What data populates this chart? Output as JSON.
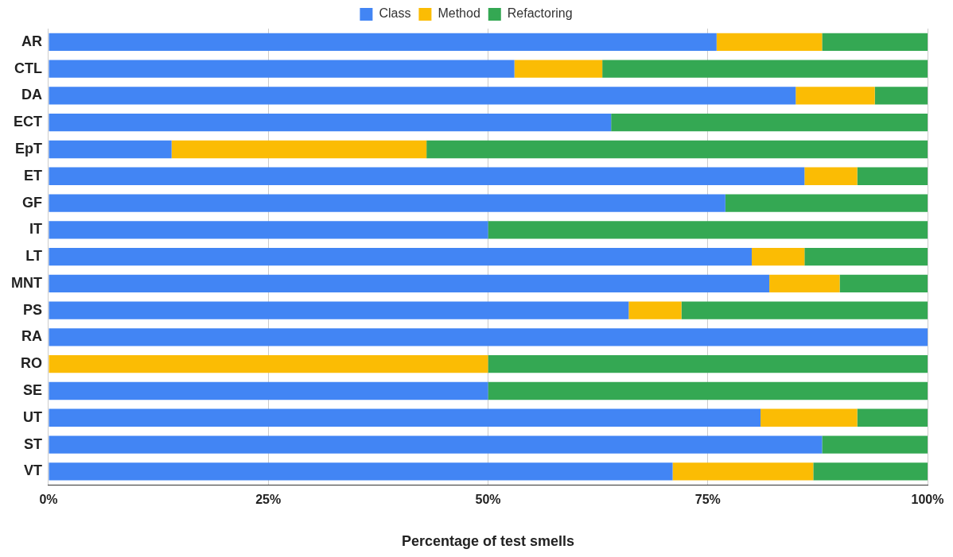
{
  "chart_data": {
    "type": "bar",
    "orientation": "horizontal",
    "stacked": true,
    "xlabel": "Percentage of test smells",
    "categories": [
      "AR",
      "CTL",
      "DA",
      "ECT",
      "EpT",
      "ET",
      "GF",
      "IT",
      "LT",
      "MNT",
      "PS",
      "RA",
      "RO",
      "SE",
      "UT",
      "ST",
      "VT"
    ],
    "series": [
      {
        "name": "Class",
        "color": "#4285f4",
        "values": [
          76,
          53,
          85,
          64,
          14,
          86,
          77,
          50,
          80,
          82,
          66,
          100,
          0,
          50,
          81,
          88,
          71
        ]
      },
      {
        "name": "Method",
        "color": "#fbbc04",
        "values": [
          12,
          10,
          9,
          0,
          29,
          6,
          0,
          0,
          6,
          8,
          6,
          0,
          50,
          0,
          11,
          0,
          16
        ]
      },
      {
        "name": "Refactoring",
        "color": "#34a853",
        "values": [
          12,
          37,
          6,
          36,
          57,
          8,
          23,
          50,
          14,
          10,
          28,
          0,
          50,
          50,
          8,
          12,
          13
        ]
      }
    ],
    "xlim": [
      0,
      100
    ],
    "xticks": [
      {
        "value": 0,
        "label": "0%"
      },
      {
        "value": 25,
        "label": "25%"
      },
      {
        "value": 50,
        "label": "50%"
      },
      {
        "value": 75,
        "label": "75%"
      },
      {
        "value": 100,
        "label": "100%"
      }
    ],
    "grid": "x",
    "legend": "top"
  }
}
